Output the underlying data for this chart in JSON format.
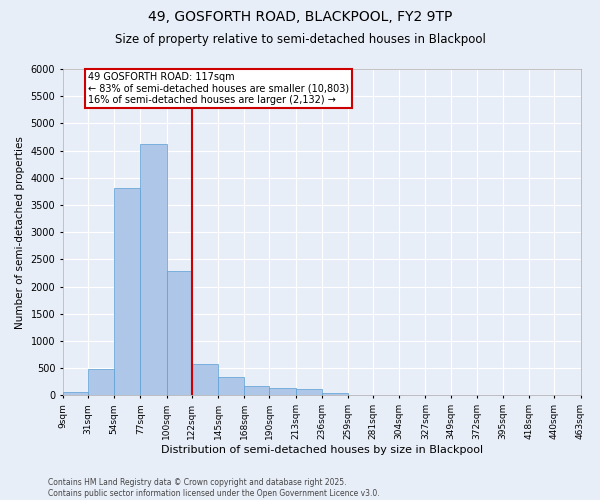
{
  "title1": "49, GOSFORTH ROAD, BLACKPOOL, FY2 9TP",
  "title2": "Size of property relative to semi-detached houses in Blackpool",
  "xlabel": "Distribution of semi-detached houses by size in Blackpool",
  "ylabel": "Number of semi-detached properties",
  "bin_labels": [
    "9sqm",
    "31sqm",
    "54sqm",
    "77sqm",
    "100sqm",
    "122sqm",
    "145sqm",
    "168sqm",
    "190sqm",
    "213sqm",
    "236sqm",
    "259sqm",
    "281sqm",
    "304sqm",
    "327sqm",
    "349sqm",
    "372sqm",
    "395sqm",
    "418sqm",
    "440sqm",
    "463sqm"
  ],
  "bin_edges": [
    9,
    31,
    54,
    77,
    100,
    122,
    145,
    168,
    190,
    213,
    236,
    259,
    281,
    304,
    327,
    349,
    372,
    395,
    418,
    440,
    463
  ],
  "bar_heights": [
    60,
    490,
    3820,
    4620,
    2280,
    570,
    340,
    170,
    130,
    120,
    40,
    0,
    0,
    0,
    0,
    0,
    0,
    0,
    0,
    0
  ],
  "bar_color": "#aec6e8",
  "bar_edge_color": "#5a9fd4",
  "bg_color": "#e8eef8",
  "grid_color": "#ffffff",
  "vline_x": 122,
  "vline_color": "#cc0000",
  "annotation_text": "49 GOSFORTH ROAD: 117sqm\n← 83% of semi-detached houses are smaller (10,803)\n16% of semi-detached houses are larger (2,132) →",
  "annotation_box_color": "#ffffff",
  "annotation_box_edge_color": "#cc0000",
  "footer": "Contains HM Land Registry data © Crown copyright and database right 2025.\nContains public sector information licensed under the Open Government Licence v3.0.",
  "ylim": [
    0,
    6000
  ],
  "yticks": [
    0,
    500,
    1000,
    1500,
    2000,
    2500,
    3000,
    3500,
    4000,
    4500,
    5000,
    5500,
    6000
  ],
  "figsize": [
    6.0,
    5.0
  ],
  "dpi": 100
}
